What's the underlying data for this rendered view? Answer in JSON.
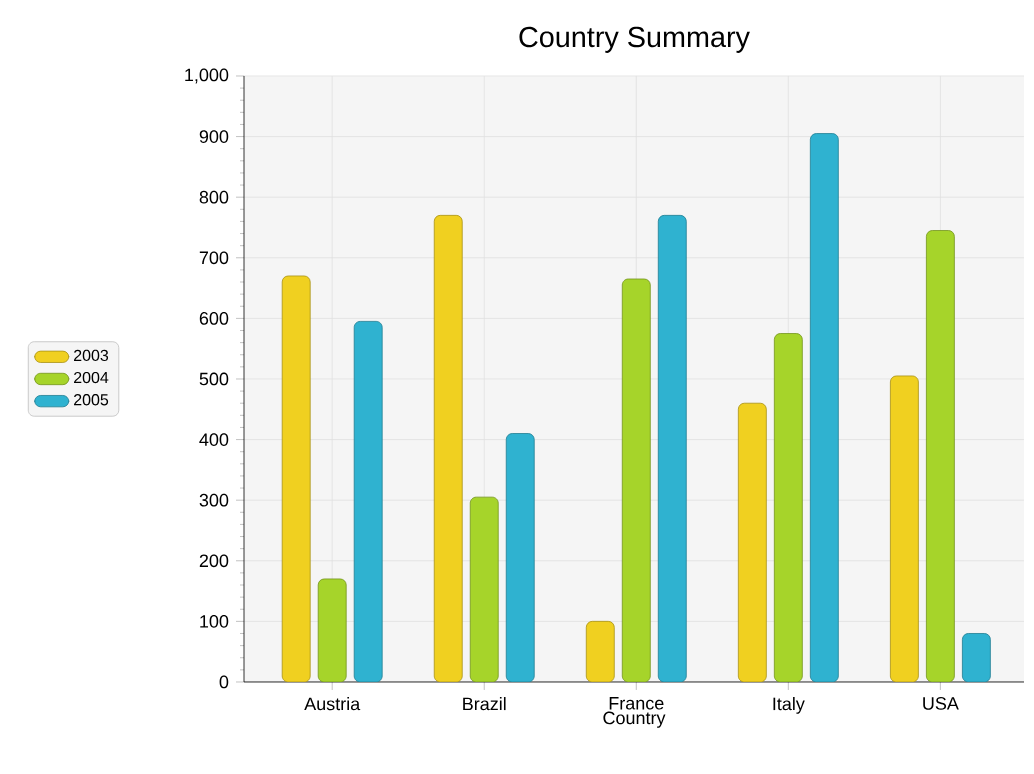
{
  "chart_data": {
    "type": "bar",
    "title": "Country Summary",
    "xlabel": "Country",
    "categories": [
      "Austria",
      "Brazil",
      "France",
      "Italy",
      "USA"
    ],
    "series": [
      {
        "name": "2003",
        "color": "#f0d020",
        "values": [
          670,
          770,
          100,
          460,
          505
        ]
      },
      {
        "name": "2004",
        "color": "#a6d42a",
        "values": [
          170,
          305,
          665,
          575,
          745
        ]
      },
      {
        "name": "2005",
        "color": "#2fb2d0",
        "values": [
          595,
          410,
          770,
          905,
          80
        ]
      }
    ],
    "ylim": [
      0,
      1000
    ],
    "yticks": [
      0,
      100,
      200,
      300,
      400,
      500,
      600,
      700,
      800,
      900,
      {
        "value": 1000,
        "label": "1,000"
      }
    ],
    "grid": true,
    "legend": "left"
  }
}
